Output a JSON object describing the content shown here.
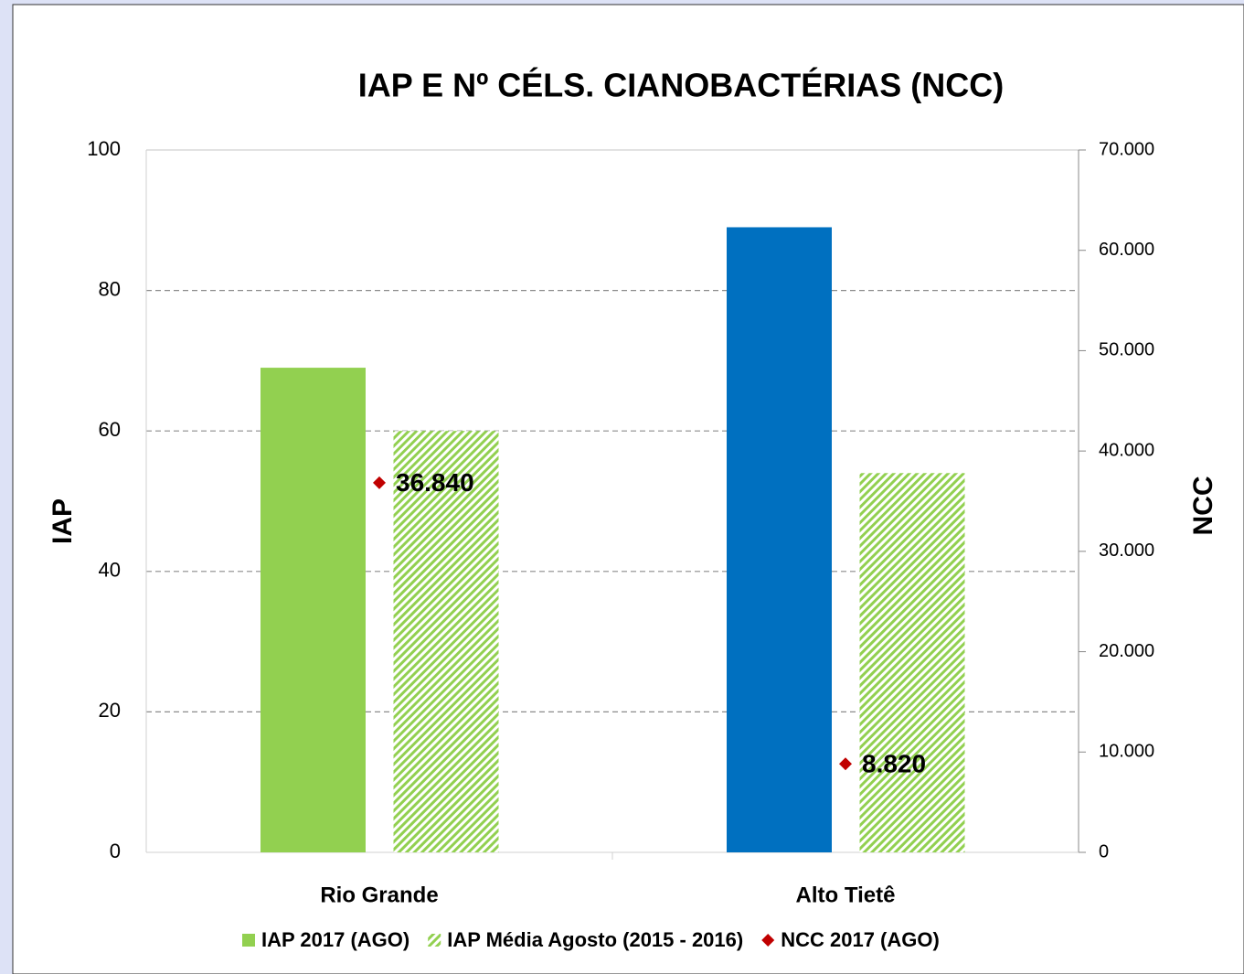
{
  "chart_data": {
    "type": "bar",
    "title": "IAP E Nº CÉLS. CIANOBACTÉRIAS (NCC)",
    "y_label": "IAP",
    "y2_label": "NCC",
    "categories": [
      "Rio Grande",
      "Alto Tietê"
    ],
    "series": [
      {
        "name": "IAP 2017 (AGO)",
        "color": "#92d050",
        "point_colors": [
          "#92d050",
          "#0070c0"
        ],
        "values": [
          69,
          89
        ]
      },
      {
        "name": "IAP Média Agosto (2015 - 2016)",
        "color": "#92d050",
        "pattern": "hatch",
        "values": [
          60,
          54
        ]
      },
      {
        "name": "NCC 2017 (AGO)",
        "color": "#c00000",
        "axis": "y2",
        "marker": "diamond",
        "values": [
          36840,
          8820
        ],
        "value_labels": [
          "36.840",
          "8.820"
        ]
      }
    ],
    "ylim": [
      0,
      100
    ],
    "yticks": [
      0,
      20,
      40,
      60,
      80,
      100
    ],
    "y2lim": [
      0,
      70000
    ],
    "y2ticks": [
      0,
      {
        "value": 10000,
        "label": "10.000"
      },
      {
        "value": 20000,
        "label": "20.000"
      },
      {
        "value": 30000,
        "label": "30.000"
      },
      {
        "value": 40000,
        "label": "40.000"
      },
      {
        "value": 50000,
        "label": "50.000"
      },
      {
        "value": 60000,
        "label": "60.000"
      },
      {
        "value": 70000,
        "label": "70.000"
      }
    ],
    "grid": true,
    "legend": "bottom"
  }
}
